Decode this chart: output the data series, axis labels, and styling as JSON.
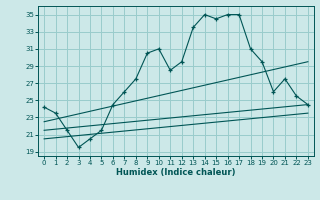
{
  "xlabel": "Humidex (Indice chaleur)",
  "bg_color": "#cce8e8",
  "grid_color": "#99cccc",
  "line_color": "#005555",
  "xlim": [
    -0.5,
    23.5
  ],
  "ylim": [
    18.5,
    36.0
  ],
  "yticks": [
    19,
    21,
    23,
    25,
    27,
    29,
    31,
    33,
    35
  ],
  "xticks": [
    0,
    1,
    2,
    3,
    4,
    5,
    6,
    7,
    8,
    9,
    10,
    11,
    12,
    13,
    14,
    15,
    16,
    17,
    18,
    19,
    20,
    21,
    22,
    23
  ],
  "series1_x": [
    0,
    1,
    2,
    3,
    4,
    5,
    6,
    7,
    8,
    9,
    10,
    11,
    12,
    13,
    14,
    15,
    16,
    17,
    18,
    19,
    20,
    21,
    22,
    23
  ],
  "series1_y": [
    24.2,
    23.5,
    21.5,
    19.5,
    20.5,
    21.5,
    24.5,
    26.0,
    27.5,
    30.5,
    31.0,
    28.5,
    29.5,
    33.5,
    35.0,
    34.5,
    35.0,
    35.0,
    31.0,
    29.5,
    26.0,
    27.5,
    25.5,
    24.5
  ],
  "series2_x": [
    0,
    23
  ],
  "series2_y": [
    22.5,
    29.5
  ],
  "series3_x": [
    0,
    23
  ],
  "series3_y": [
    21.5,
    24.5
  ],
  "series4_x": [
    0,
    23
  ],
  "series4_y": [
    20.5,
    23.5
  ]
}
